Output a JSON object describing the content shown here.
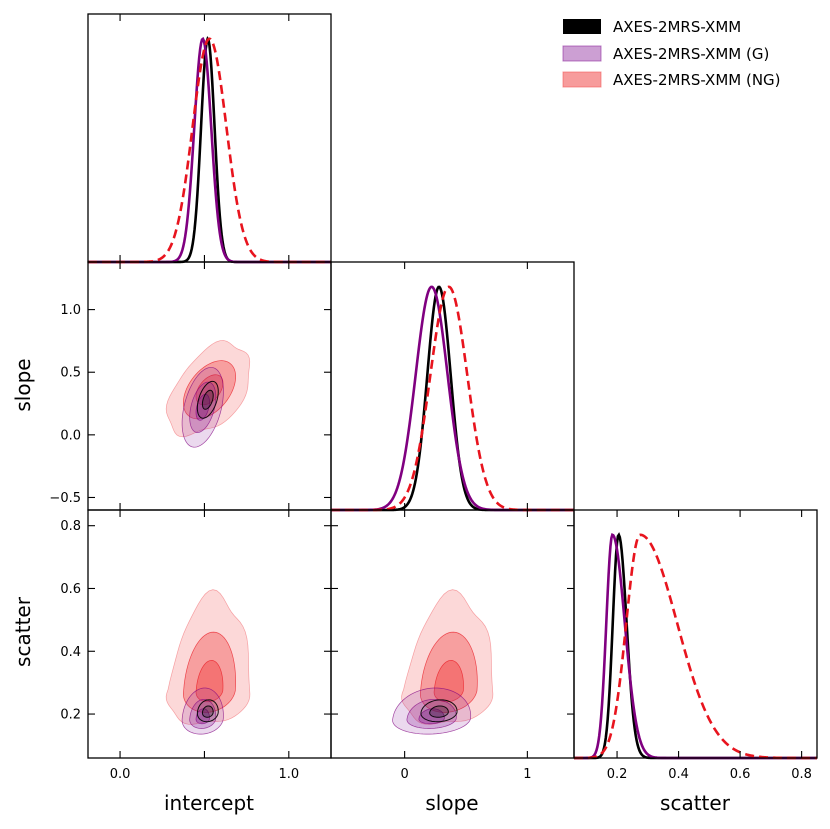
{
  "chart_data": {
    "type": "corner",
    "parameters": [
      "intercept",
      "slope",
      "scatter"
    ],
    "axis_labels": {
      "intercept": "intercept",
      "slope": "slope",
      "scatter": "scatter"
    },
    "ranges": {
      "intercept": [
        -0.19,
        1.25
      ],
      "slope": [
        -0.6,
        1.38
      ],
      "scatter": [
        0.06,
        0.85
      ]
    },
    "ticks": {
      "intercept": {
        "values": [
          0.0,
          0.5,
          1.0
        ],
        "labels": [
          "0.0",
          "",
          "1.0"
        ]
      },
      "slope_x": {
        "values": [
          0,
          1
        ],
        "labels": [
          "0",
          "1"
        ]
      },
      "slope_y": {
        "values": [
          -0.5,
          0.0,
          0.5,
          1.0
        ],
        "labels": [
          "−0.5",
          "0.0",
          "0.5",
          "1.0"
        ]
      },
      "scatter_x": {
        "values": [
          0.2,
          0.4,
          0.6,
          0.8
        ],
        "labels": [
          "0.2",
          "0.4",
          "0.6",
          "0.8"
        ]
      },
      "scatter_y": {
        "values": [
          0.2,
          0.4,
          0.6,
          0.8
        ],
        "labels": [
          "0.2",
          "0.4",
          "0.6",
          "0.8"
        ]
      }
    },
    "series": [
      {
        "name": "AXES-2MRS-XMM",
        "color": "#000000",
        "fill": "#000000",
        "line_style": "solid",
        "mean": {
          "intercept": 0.52,
          "slope": 0.28,
          "scatter": 0.205
        },
        "sigma": {
          "intercept": 0.04,
          "slope": 0.095,
          "scatter_lo": 0.019,
          "scatter_hi": 0.026
        },
        "corr": {
          "intercept_slope": 0.45,
          "intercept_scatter": 0.1,
          "slope_scatter": 0.1
        }
      },
      {
        "name": "AXES-2MRS-XMM (G)",
        "color": "#800080",
        "fill": "#8e2a9e",
        "line_style": "solid",
        "mean": {
          "intercept": 0.49,
          "slope": 0.22,
          "scatter": 0.185
        },
        "sigma": {
          "intercept": 0.05,
          "slope": 0.13,
          "scatter_lo": 0.02,
          "scatter_hi": 0.04
        },
        "corr": {
          "intercept_slope": 0.4,
          "intercept_scatter": 0.1,
          "slope_scatter": 0.1
        }
      },
      {
        "name": "AXES-2MRS-XMM (NG)",
        "color": "#e8141e",
        "fill": "#f25a5a",
        "line_style": "dashed",
        "mean": {
          "intercept": 0.53,
          "slope": 0.36,
          "scatter": 0.275
        },
        "sigma": {
          "intercept": 0.1,
          "slope": 0.15,
          "scatter_lo": 0.045,
          "scatter_hi": 0.12
        },
        "corr": {
          "intercept_slope": 0.45,
          "intercept_scatter": 0.15,
          "slope_scatter": 0.15
        }
      }
    ],
    "legend": {
      "placement": "top-right",
      "entries": [
        "AXES-2MRS-XMM",
        "AXES-2MRS-XMM (G)",
        "AXES-2MRS-XMM (NG)"
      ]
    }
  }
}
